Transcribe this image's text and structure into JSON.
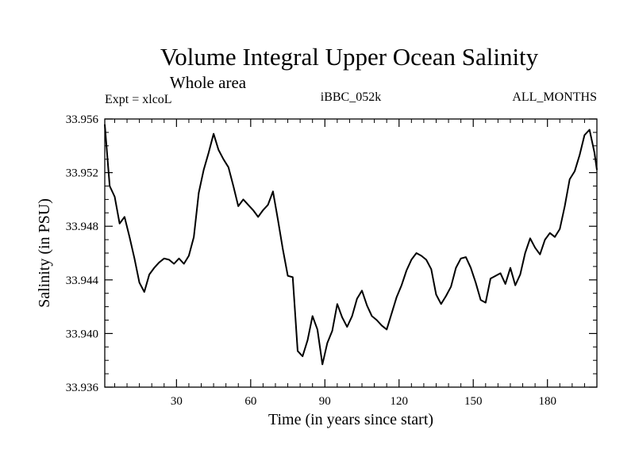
{
  "chart_data": {
    "type": "line",
    "title": "Volume Integral Upper Ocean Salinity",
    "subtitle": "Whole area",
    "left_label": "Expt = xlcoL",
    "center_label": "iBBC_052k",
    "right_label": "ALL_MONTHS",
    "xlabel": "Time (in years since start)",
    "ylabel": "Salinity (in PSU)",
    "xlim": [
      1,
      200
    ],
    "ylim": [
      33.936,
      33.956
    ],
    "xticks": [
      30,
      60,
      90,
      120,
      150,
      180
    ],
    "xtick_labels": [
      "30",
      "60",
      "90",
      "120",
      "150",
      "180"
    ],
    "yticks": [
      33.936,
      33.94,
      33.944,
      33.948,
      33.952,
      33.956
    ],
    "ytick_labels": [
      "33.936",
      "33.940",
      "33.944",
      "33.948",
      "33.952",
      "33.956"
    ],
    "grid": false,
    "series": [
      {
        "name": "salinity",
        "x": [
          1,
          3,
          5,
          7,
          9,
          11,
          13,
          15,
          17,
          19,
          21,
          23,
          25,
          27,
          29,
          31,
          33,
          35,
          37,
          39,
          41,
          43,
          45,
          47,
          49,
          51,
          53,
          55,
          57,
          59,
          61,
          63,
          65,
          67,
          69,
          71,
          73,
          75,
          77,
          79,
          81,
          83,
          85,
          87,
          89,
          91,
          93,
          95,
          97,
          99,
          101,
          103,
          105,
          107,
          109,
          111,
          113,
          115,
          117,
          119,
          121,
          123,
          125,
          127,
          129,
          131,
          133,
          135,
          137,
          139,
          141,
          143,
          145,
          147,
          149,
          151,
          153,
          155,
          157,
          159,
          161,
          163,
          165,
          167,
          169,
          171,
          173,
          175,
          177,
          179,
          181,
          183,
          185,
          187,
          189,
          191,
          193,
          195,
          197,
          199,
          200
        ],
        "values": [
          33.9556,
          33.951,
          33.9502,
          33.9482,
          33.9487,
          33.9472,
          33.9456,
          33.9438,
          33.9431,
          33.9444,
          33.9449,
          33.9453,
          33.9456,
          33.9455,
          33.9452,
          33.9456,
          33.9452,
          33.9458,
          33.9472,
          33.9505,
          33.9522,
          33.9535,
          33.9549,
          33.9537,
          33.953,
          33.9524,
          33.951,
          33.9495,
          33.95,
          33.9496,
          33.9492,
          33.9487,
          33.9492,
          33.9496,
          33.9506,
          33.9485,
          33.9463,
          33.9443,
          33.9442,
          33.9387,
          33.9383,
          33.9395,
          33.9413,
          33.9403,
          33.9377,
          33.9393,
          33.9402,
          33.9422,
          33.9412,
          33.9405,
          33.9413,
          33.9426,
          33.9432,
          33.9421,
          33.9413,
          33.941,
          33.9406,
          33.9403,
          33.9415,
          33.9427,
          33.9436,
          33.9447,
          33.9455,
          33.946,
          33.9458,
          33.9455,
          33.9448,
          33.9429,
          33.9422,
          33.9428,
          33.9435,
          33.9449,
          33.9456,
          33.9457,
          33.9449,
          33.9438,
          33.9425,
          33.9423,
          33.9441,
          33.9443,
          33.9445,
          33.9437,
          33.9449,
          33.9436,
          33.9444,
          33.946,
          33.9471,
          33.9464,
          33.9459,
          33.947,
          33.9475,
          33.9472,
          33.9478,
          33.9495,
          33.9515,
          33.9521,
          33.9533,
          33.9548,
          33.9552,
          33.9535,
          33.9522
        ]
      }
    ]
  }
}
